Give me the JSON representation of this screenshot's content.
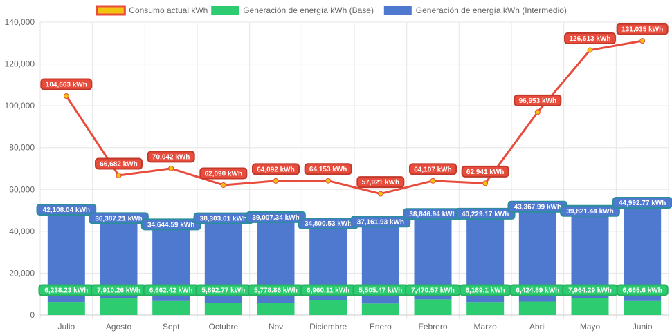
{
  "chart_data": {
    "type": "bar",
    "stacked": true,
    "categories": [
      "Julio",
      "Agosto",
      "Sept",
      "Octubre",
      "Nov",
      "Diciembre",
      "Enero",
      "Febrero",
      "Marzo",
      "Abril",
      "Mayo",
      "Junio"
    ],
    "ylim": [
      0,
      140000
    ],
    "yticks": [
      "0",
      "20,000",
      "40,000",
      "60,000",
      "80,000",
      "100,000",
      "120,000",
      "140,000"
    ],
    "grid": true,
    "legend_position": "top-center",
    "series": [
      {
        "name": "Consumo actual kWh",
        "type": "line",
        "color": "#e74c3c",
        "point_color": "#f1c40f",
        "values": [
          104663,
          66682,
          70042,
          62090,
          64092,
          64153,
          57921,
          64107,
          62941,
          96953,
          126613,
          131035
        ],
        "labels": [
          "104,663 kWh",
          "66,682 kWh",
          "70,042 kWh",
          "62,090 kWh",
          "64,092 kWh",
          "64,153 kWh",
          "57,921 kWh",
          "64,107 kWh",
          "62,941 kWh",
          "96,953 kWh",
          "126,613 kWh",
          "131,035 kWh"
        ]
      },
      {
        "name": "Generación de energía kWh (Base)",
        "type": "bar",
        "color": "#2ecc71",
        "values": [
          6238.23,
          7910.26,
          6662.42,
          5892.77,
          5778.86,
          6960.11,
          5505.47,
          7470.57,
          6189.1,
          6424.89,
          7964.29,
          6665.6
        ],
        "labels": [
          "6,238.23 kWh",
          "7,910.26 kWh",
          "6,662.42 kWh",
          "5,892.77 kWh",
          "5,778.86 kWh",
          "6,960.11 kWh",
          "5,505.47 kWh",
          "7,470.57 kWh",
          "6,189.1 kWh",
          "6,424.89 kWh",
          "7,964.29 kWh",
          "6,665.6 kWh"
        ]
      },
      {
        "name": "Generación de energía kWh (Intermedio)",
        "type": "bar",
        "color": "#4e79cf",
        "values": [
          42108.04,
          36387.21,
          34644.59,
          38303.01,
          39007.34,
          34800.53,
          37161.93,
          38846.94,
          40229.17,
          43367.99,
          39821.44,
          44992.77
        ],
        "labels": [
          "42,108.04 kWh",
          "36,387.21 kWh",
          "34,644.59 kWh",
          "38,303.01 kWh",
          "39,007.34 kWh",
          "34,800.53 kWh",
          "37,161.93 kWh",
          "38,846.94 kWh",
          "40,229.17 kWh",
          "43,367.99 kWh",
          "39,821.44 kWh",
          "44,992.77 kWh"
        ]
      }
    ]
  }
}
